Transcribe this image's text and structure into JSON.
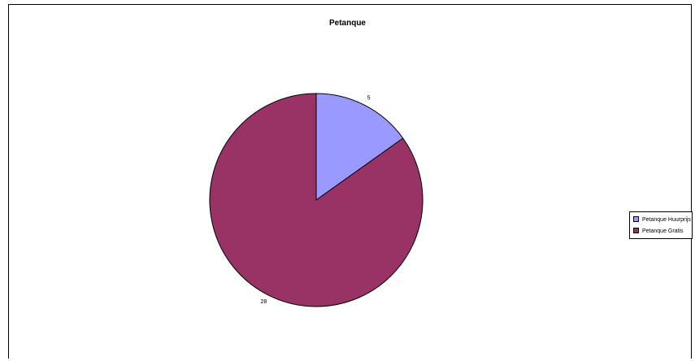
{
  "chart_data": {
    "type": "pie",
    "title": "Petanque",
    "categories": [
      "Petanque Huurprijs",
      "Petanque Gratis"
    ],
    "values": [
      5,
      28
    ],
    "colors": [
      "#9999ff",
      "#993366"
    ],
    "legend_position": "right"
  }
}
